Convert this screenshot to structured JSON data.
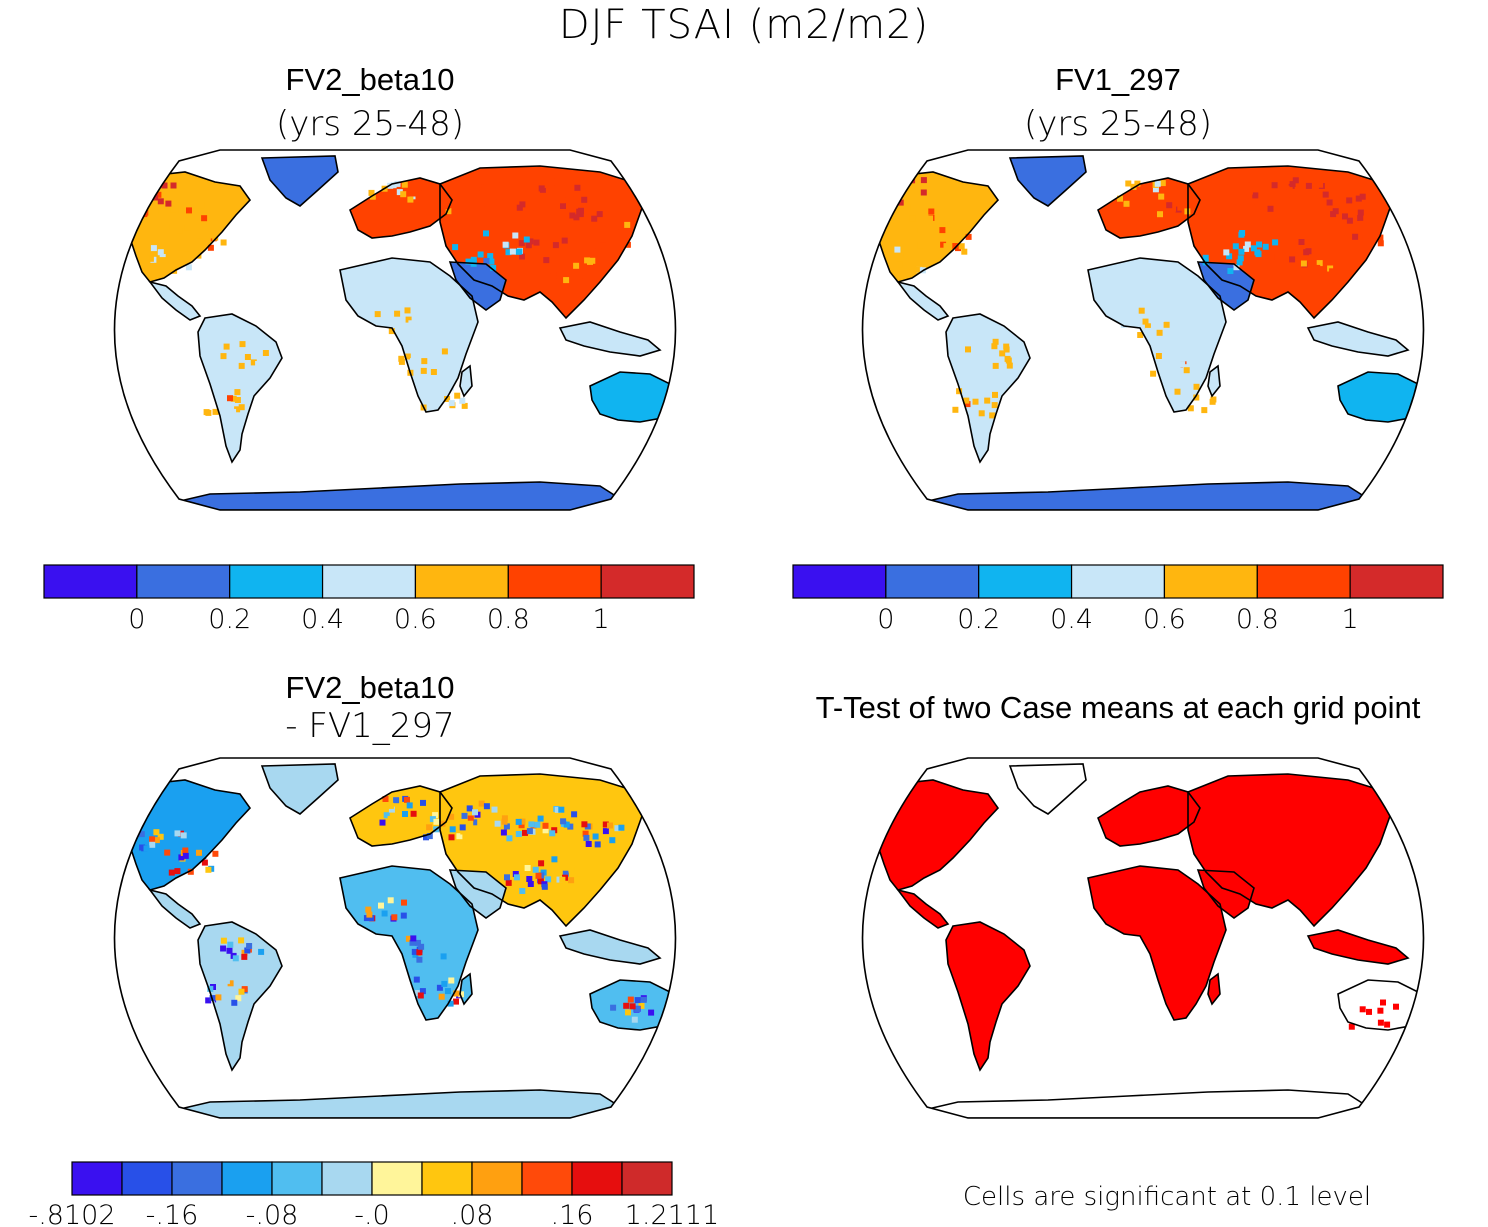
{
  "figure_title": "DJF TSAI (m2/m2)",
  "panels": [
    {
      "title": "FV2_beta10",
      "subtitle": "(yrs 25-48)"
    },
    {
      "title": "FV1_297",
      "subtitle": "(yrs 25-48)"
    },
    {
      "title": "FV2_beta10",
      "subtitle": "- FV1_297"
    },
    {
      "title": "T-Test of two Case means at each grid point",
      "subtitle": ""
    }
  ],
  "colorbars": [
    {
      "colors": [
        "#3a10f0",
        "#3a6fe0",
        "#10b4f0",
        "#c8e6f8",
        "#ffb60f",
        "#ff4200",
        "#d42a2a"
      ],
      "ticks": [
        "0",
        "0.2",
        "0.4",
        "0.6",
        "0.8",
        "1"
      ]
    },
    {
      "colors": [
        "#3a10f0",
        "#3a6fe0",
        "#10b4f0",
        "#c8e6f8",
        "#ffb60f",
        "#ff4200",
        "#d42a2a"
      ],
      "ticks": [
        "0",
        "0.2",
        "0.4",
        "0.6",
        "0.8",
        "1"
      ]
    },
    {
      "colors": [
        "#3a10f0",
        "#2850e8",
        "#3a6fe0",
        "#1aa0f0",
        "#50bef0",
        "#a8d8f0",
        "#fff59a",
        "#ffc60f",
        "#ffa010",
        "#ff4a0a",
        "#e60e0e",
        "#cf2a2a"
      ],
      "ticks": [
        "-.8102",
        "-.16",
        "-.08",
        "-.0",
        ".08",
        ".16",
        "1.2111"
      ]
    }
  ],
  "footnote": "Cells are significant at 0.1 level",
  "chart_data": [
    {
      "type": "heatmap",
      "title": "FV2_beta10 (yrs 25-48)",
      "variable": "DJF TSAI (m2/m2)",
      "levels": [
        0,
        0.2,
        0.4,
        0.6,
        0.8,
        1
      ],
      "regions": {
        "sahara_arabia": 0.1,
        "antarctica": 0.1,
        "greenland": 0.1,
        "australia": 0.3,
        "south_america": 0.5,
        "africa": 0.5,
        "north_america": 0.7,
        "eurasia": 0.8,
        "siberia_china": 1.1
      }
    },
    {
      "type": "heatmap",
      "title": "FV1_297 (yrs 25-48)",
      "variable": "DJF TSAI (m2/m2)",
      "levels": [
        0,
        0.2,
        0.4,
        0.6,
        0.8,
        1
      ],
      "regions": {
        "sahara_arabia": 0.1,
        "antarctica": 0.1,
        "greenland": 0.1,
        "australia": 0.3,
        "south_america": 0.5,
        "africa": 0.5,
        "north_america": 0.7,
        "eurasia": 0.8,
        "siberia_china": 1.1
      }
    },
    {
      "type": "heatmap",
      "title": "FV2_beta10 - FV1_297",
      "variable": "DJF TSAI difference (m2/m2)",
      "levels": [
        -0.8102,
        -0.16,
        -0.08,
        -0.0,
        0.08,
        0.16,
        1.2111
      ],
      "regions": {
        "antarctica": 0.02,
        "greenland": 0.02,
        "sahara_arabia": 0.02,
        "australia": -0.03,
        "south_america": 0.02,
        "africa": 0.0,
        "north_america": -0.05,
        "eurasia": 0.05
      }
    },
    {
      "type": "heatmap",
      "title": "T-Test of two Case means at each grid point",
      "significance_level": 0.1,
      "significant_color": "#ff0000"
    }
  ]
}
